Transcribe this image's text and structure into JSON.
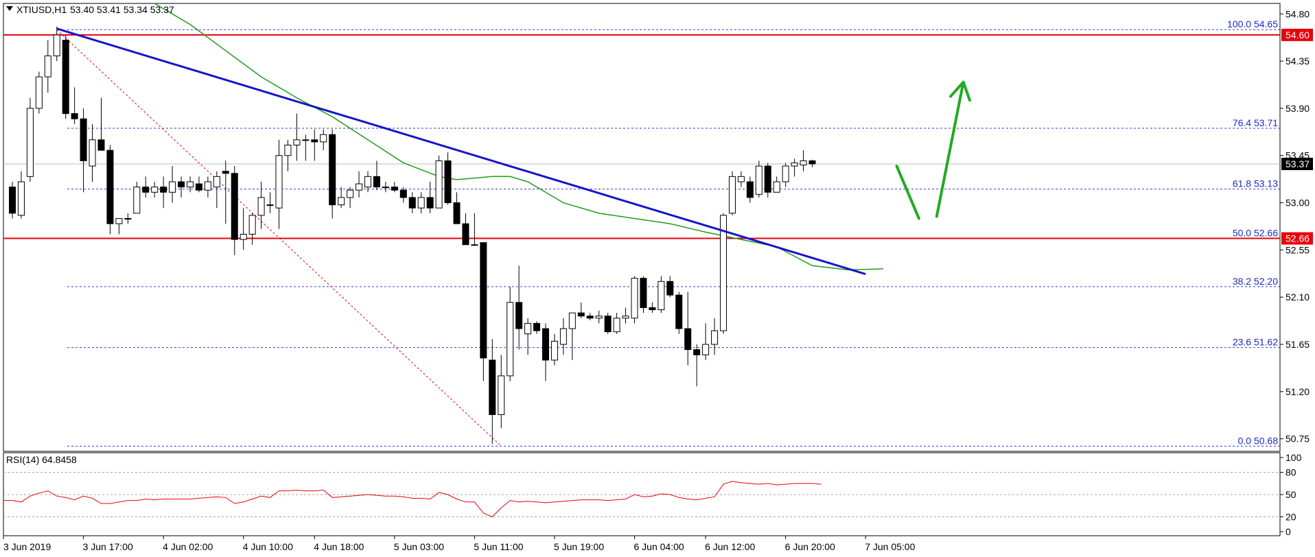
{
  "symbol": "XTIUSD,H1",
  "ohlc_header": "53.40 53.41 53.34 53.37",
  "rsi_label": "RSI(14) 64.8458",
  "colors": {
    "trendline": "#1414c8",
    "ma": "#1f9a1f",
    "level_line": "#e8000b",
    "fib_line": "#2b3bd6",
    "arrow": "#22aa22",
    "rsi_line": "#e8000b",
    "bull_fill": "#ffffff",
    "bear_fill": "#000000"
  },
  "price_tags": [
    {
      "text": "54.60",
      "value": 54.6
    },
    {
      "text": "52.66",
      "value": 52.66
    },
    {
      "text": "53.37",
      "value": 53.37
    }
  ],
  "chart_data": {
    "type": "candlestick",
    "y_ticks": [
      "54.80",
      "54.35",
      "53.90",
      "53.45",
      "53.00",
      "52.55",
      "52.10",
      "51.65",
      "51.20",
      "50.75"
    ],
    "ylim": [
      50.63,
      54.9
    ],
    "x_tick_labels": [
      "3 Jun 2019",
      "3 Jun 17:00",
      "4 Jun 02:00",
      "4 Jun 10:00",
      "4 Jun 18:00",
      "5 Jun 03:00",
      "5 Jun 11:00",
      "5 Jun 19:00",
      "6 Jun 04:00",
      "6 Jun 12:00",
      "6 Jun 20:00",
      "7 Jun 05:00"
    ],
    "x_tick_bars": [
      0,
      8,
      17,
      26,
      34,
      43,
      52,
      61,
      70,
      78,
      87,
      96
    ],
    "fib_levels": [
      {
        "label": "100.0 54.65",
        "value": 54.65
      },
      {
        "label": "76.4 53.71",
        "value": 53.71
      },
      {
        "label": "61.8 53.13",
        "value": 53.13
      },
      {
        "label": "50.0 52.66",
        "value": 52.66
      },
      {
        "label": "38.2 52.20",
        "value": 52.2
      },
      {
        "label": "23.6 51.62",
        "value": 51.62
      },
      {
        "label": "0.0 50.68",
        "value": 50.68
      }
    ],
    "horizontal_levels": [
      54.6,
      52.66
    ],
    "candles": [
      {
        "o": 53.15,
        "h": 53.2,
        "l": 52.85,
        "c": 52.9
      },
      {
        "o": 52.88,
        "h": 53.3,
        "l": 52.85,
        "c": 53.2
      },
      {
        "o": 53.25,
        "h": 54.0,
        "l": 53.2,
        "c": 53.9
      },
      {
        "o": 53.9,
        "h": 54.25,
        "l": 53.85,
        "c": 54.2
      },
      {
        "o": 54.2,
        "h": 54.55,
        "l": 54.05,
        "c": 54.4
      },
      {
        "o": 54.4,
        "h": 54.68,
        "l": 54.35,
        "c": 54.6
      },
      {
        "o": 54.55,
        "h": 54.6,
        "l": 53.8,
        "c": 53.85
      },
      {
        "o": 53.85,
        "h": 54.1,
        "l": 53.75,
        "c": 53.8
      },
      {
        "o": 53.8,
        "h": 53.9,
        "l": 53.1,
        "c": 53.4
      },
      {
        "o": 53.35,
        "h": 53.75,
        "l": 53.2,
        "c": 53.6
      },
      {
        "o": 53.6,
        "h": 54.0,
        "l": 53.5,
        "c": 53.5
      },
      {
        "o": 53.5,
        "h": 53.55,
        "l": 52.7,
        "c": 52.8
      },
      {
        "o": 52.8,
        "h": 52.85,
        "l": 52.7,
        "c": 52.85
      },
      {
        "o": 52.85,
        "h": 52.9,
        "l": 52.8,
        "c": 52.85
      },
      {
        "o": 52.9,
        "h": 53.2,
        "l": 52.9,
        "c": 53.15
      },
      {
        "o": 53.15,
        "h": 53.25,
        "l": 53.05,
        "c": 53.1
      },
      {
        "o": 53.1,
        "h": 53.2,
        "l": 53.05,
        "c": 53.15
      },
      {
        "o": 53.15,
        "h": 53.25,
        "l": 52.95,
        "c": 53.1
      },
      {
        "o": 53.1,
        "h": 53.35,
        "l": 53.0,
        "c": 53.2
      },
      {
        "o": 53.2,
        "h": 53.25,
        "l": 53.05,
        "c": 53.15
      },
      {
        "o": 53.15,
        "h": 53.25,
        "l": 53.1,
        "c": 53.2
      },
      {
        "o": 53.18,
        "h": 53.25,
        "l": 53.1,
        "c": 53.12
      },
      {
        "o": 53.12,
        "h": 53.25,
        "l": 53.05,
        "c": 53.2
      },
      {
        "o": 53.15,
        "h": 53.3,
        "l": 52.95,
        "c": 53.25
      },
      {
        "o": 53.3,
        "h": 53.4,
        "l": 52.8,
        "c": 53.28
      },
      {
        "o": 53.28,
        "h": 53.35,
        "l": 52.5,
        "c": 52.65
      },
      {
        "o": 52.65,
        "h": 52.95,
        "l": 52.55,
        "c": 52.7
      },
      {
        "o": 52.7,
        "h": 52.9,
        "l": 52.6,
        "c": 52.88
      },
      {
        "o": 52.88,
        "h": 53.2,
        "l": 52.75,
        "c": 53.05
      },
      {
        "o": 52.98,
        "h": 53.1,
        "l": 52.9,
        "c": 52.98
      },
      {
        "o": 52.95,
        "h": 53.6,
        "l": 52.75,
        "c": 53.45
      },
      {
        "o": 53.45,
        "h": 53.6,
        "l": 53.3,
        "c": 53.55
      },
      {
        "o": 53.55,
        "h": 53.85,
        "l": 53.4,
        "c": 53.6
      },
      {
        "o": 53.6,
        "h": 53.65,
        "l": 53.4,
        "c": 53.6
      },
      {
        "o": 53.6,
        "h": 53.7,
        "l": 53.4,
        "c": 53.58
      },
      {
        "o": 53.58,
        "h": 53.7,
        "l": 53.5,
        "c": 53.65
      },
      {
        "o": 53.65,
        "h": 53.7,
        "l": 52.85,
        "c": 52.98
      },
      {
        "o": 52.98,
        "h": 53.15,
        "l": 52.95,
        "c": 53.05
      },
      {
        "o": 53.05,
        "h": 53.15,
        "l": 52.95,
        "c": 53.12
      },
      {
        "o": 53.12,
        "h": 53.3,
        "l": 53.05,
        "c": 53.18
      },
      {
        "o": 53.15,
        "h": 53.3,
        "l": 53.1,
        "c": 53.25
      },
      {
        "o": 53.25,
        "h": 53.4,
        "l": 53.12,
        "c": 53.15
      },
      {
        "o": 53.15,
        "h": 53.2,
        "l": 53.1,
        "c": 53.15
      },
      {
        "o": 53.15,
        "h": 53.2,
        "l": 53.1,
        "c": 53.12
      },
      {
        "o": 53.12,
        "h": 53.15,
        "l": 53.0,
        "c": 53.05
      },
      {
        "o": 53.05,
        "h": 53.1,
        "l": 52.9,
        "c": 52.95
      },
      {
        "o": 52.95,
        "h": 53.1,
        "l": 52.9,
        "c": 53.05
      },
      {
        "o": 53.05,
        "h": 53.2,
        "l": 52.9,
        "c": 52.95
      },
      {
        "o": 52.95,
        "h": 53.45,
        "l": 52.95,
        "c": 53.4
      },
      {
        "o": 53.4,
        "h": 53.48,
        "l": 52.98,
        "c": 53.0
      },
      {
        "o": 53.0,
        "h": 53.1,
        "l": 52.8,
        "c": 52.8
      },
      {
        "o": 52.8,
        "h": 52.9,
        "l": 52.6,
        "c": 52.6
      },
      {
        "o": 52.6,
        "h": 52.9,
        "l": 52.6,
        "c": 52.6
      },
      {
        "o": 52.62,
        "h": 52.62,
        "l": 51.3,
        "c": 51.52
      },
      {
        "o": 51.5,
        "h": 51.7,
        "l": 50.7,
        "c": 50.98
      },
      {
        "o": 50.98,
        "h": 51.55,
        "l": 50.85,
        "c": 51.35
      },
      {
        "o": 51.35,
        "h": 52.2,
        "l": 51.3,
        "c": 52.05
      },
      {
        "o": 52.05,
        "h": 52.4,
        "l": 51.6,
        "c": 51.8
      },
      {
        "o": 51.75,
        "h": 51.9,
        "l": 51.55,
        "c": 51.85
      },
      {
        "o": 51.85,
        "h": 51.87,
        "l": 51.75,
        "c": 51.78
      },
      {
        "o": 51.8,
        "h": 51.85,
        "l": 51.3,
        "c": 51.5
      },
      {
        "o": 51.5,
        "h": 51.75,
        "l": 51.45,
        "c": 51.68
      },
      {
        "o": 51.65,
        "h": 51.9,
        "l": 51.55,
        "c": 51.8
      },
      {
        "o": 51.8,
        "h": 51.95,
        "l": 51.5,
        "c": 51.95
      },
      {
        "o": 51.95,
        "h": 52.05,
        "l": 51.9,
        "c": 51.92
      },
      {
        "o": 51.92,
        "h": 51.95,
        "l": 51.88,
        "c": 51.9
      },
      {
        "o": 51.9,
        "h": 51.97,
        "l": 51.85,
        "c": 51.92
      },
      {
        "o": 51.92,
        "h": 51.95,
        "l": 51.75,
        "c": 51.77
      },
      {
        "o": 51.77,
        "h": 51.95,
        "l": 51.75,
        "c": 51.9
      },
      {
        "o": 51.9,
        "h": 52.0,
        "l": 51.85,
        "c": 51.92
      },
      {
        "o": 51.9,
        "h": 52.3,
        "l": 51.85,
        "c": 52.28
      },
      {
        "o": 52.28,
        "h": 52.3,
        "l": 51.95,
        "c": 52.0
      },
      {
        "o": 52.0,
        "h": 52.05,
        "l": 51.95,
        "c": 51.98
      },
      {
        "o": 51.98,
        "h": 52.3,
        "l": 51.95,
        "c": 52.25
      },
      {
        "o": 52.25,
        "h": 52.3,
        "l": 52.1,
        "c": 52.12
      },
      {
        "o": 52.12,
        "h": 52.15,
        "l": 51.75,
        "c": 51.8
      },
      {
        "o": 51.8,
        "h": 52.15,
        "l": 51.45,
        "c": 51.6
      },
      {
        "o": 51.6,
        "h": 51.65,
        "l": 51.25,
        "c": 51.55
      },
      {
        "o": 51.55,
        "h": 51.85,
        "l": 51.5,
        "c": 51.65
      },
      {
        "o": 51.65,
        "h": 51.9,
        "l": 51.55,
        "c": 51.78
      },
      {
        "o": 51.78,
        "h": 52.9,
        "l": 51.75,
        "c": 52.88
      },
      {
        "o": 52.9,
        "h": 53.3,
        "l": 52.88,
        "c": 53.25
      },
      {
        "o": 53.2,
        "h": 53.3,
        "l": 53.15,
        "c": 53.25
      },
      {
        "o": 53.2,
        "h": 53.25,
        "l": 53.0,
        "c": 53.05
      },
      {
        "o": 53.08,
        "h": 53.4,
        "l": 53.05,
        "c": 53.35
      },
      {
        "o": 53.35,
        "h": 53.38,
        "l": 53.05,
        "c": 53.1
      },
      {
        "o": 53.1,
        "h": 53.25,
        "l": 53.1,
        "c": 53.2
      },
      {
        "o": 53.2,
        "h": 53.38,
        "l": 53.15,
        "c": 53.35
      },
      {
        "o": 53.35,
        "h": 53.42,
        "l": 53.25,
        "c": 53.38
      },
      {
        "o": 53.36,
        "h": 53.5,
        "l": 53.3,
        "c": 53.4
      },
      {
        "o": 53.4,
        "h": 53.41,
        "l": 53.34,
        "c": 53.37
      }
    ],
    "ma_points": [
      [
        16,
        54.9
      ],
      [
        20,
        54.7
      ],
      [
        24,
        54.45
      ],
      [
        28,
        54.2
      ],
      [
        32,
        54.0
      ],
      [
        36,
        53.82
      ],
      [
        40,
        53.6
      ],
      [
        44,
        53.38
      ],
      [
        48,
        53.25
      ],
      [
        50,
        53.22
      ],
      [
        54,
        53.25
      ],
      [
        56,
        53.25
      ],
      [
        58,
        53.2
      ],
      [
        62,
        53.0
      ],
      [
        66,
        52.9
      ],
      [
        70,
        52.85
      ],
      [
        74,
        52.8
      ],
      [
        78,
        52.72
      ],
      [
        82,
        52.65
      ],
      [
        86,
        52.58
      ],
      [
        90,
        52.4
      ],
      [
        94,
        52.36
      ],
      [
        98,
        52.37
      ]
    ],
    "trendline": {
      "from": [
        5,
        54.66
      ],
      "to": [
        96,
        52.32
      ]
    },
    "fib_diagonal": {
      "from": [
        5,
        54.65
      ],
      "to": [
        55,
        50.68
      ]
    },
    "arrows": [
      {
        "from": [
          99.5,
          53.35
        ],
        "to": [
          102.0,
          52.85
        ]
      },
      {
        "from": [
          104.0,
          52.87
        ],
        "to": [
          107.0,
          54.15
        ]
      }
    ],
    "rsi": {
      "ticks": [
        "100",
        "80",
        "50",
        "20",
        "0"
      ],
      "levels": [
        80,
        50,
        20
      ],
      "values": [
        42,
        40,
        48,
        52,
        55,
        48,
        46,
        43,
        48,
        45,
        38,
        38,
        40,
        42,
        42,
        44,
        43,
        44,
        44,
        44,
        44,
        45,
        46,
        47,
        46,
        38,
        40,
        44,
        48,
        46,
        55,
        55,
        56,
        55,
        55,
        56,
        46,
        47,
        48,
        49,
        50,
        49,
        48,
        48,
        47,
        45,
        45,
        44,
        53,
        50,
        44,
        40,
        40,
        25,
        20,
        32,
        42,
        40,
        41,
        40,
        39,
        40,
        41,
        42,
        43,
        43,
        43,
        42,
        43,
        44,
        50,
        47,
        48,
        51,
        50,
        46,
        44,
        43,
        45,
        47,
        64,
        68,
        66,
        65,
        64,
        65,
        63,
        64,
        65,
        65,
        65,
        64
      ],
      "current": 64.8458
    }
  }
}
